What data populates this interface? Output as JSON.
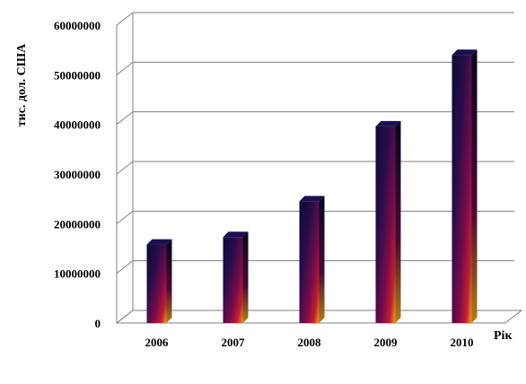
{
  "chart_data": {
    "type": "bar",
    "categories": [
      "2006",
      "2007",
      "2008",
      "2009",
      "2010"
    ],
    "values": [
      15800000,
      17300000,
      24500000,
      39600000,
      54000000
    ],
    "y_ticks": [
      "0",
      "10000000",
      "20000000",
      "30000000",
      "40000000",
      "50000000",
      "60000000"
    ],
    "ylim": [
      0,
      60000000
    ],
    "ylabel": "тис. дол. США",
    "xlabel": "Рік",
    "grid": true,
    "legend": "none",
    "colors": {
      "bar_top": "#0b0b33",
      "bar_mid": "#7a0b4a",
      "bar_low": "#c02030",
      "bar_glow": "#f0a020",
      "gridline": "#808080",
      "floor": "#808080"
    }
  }
}
